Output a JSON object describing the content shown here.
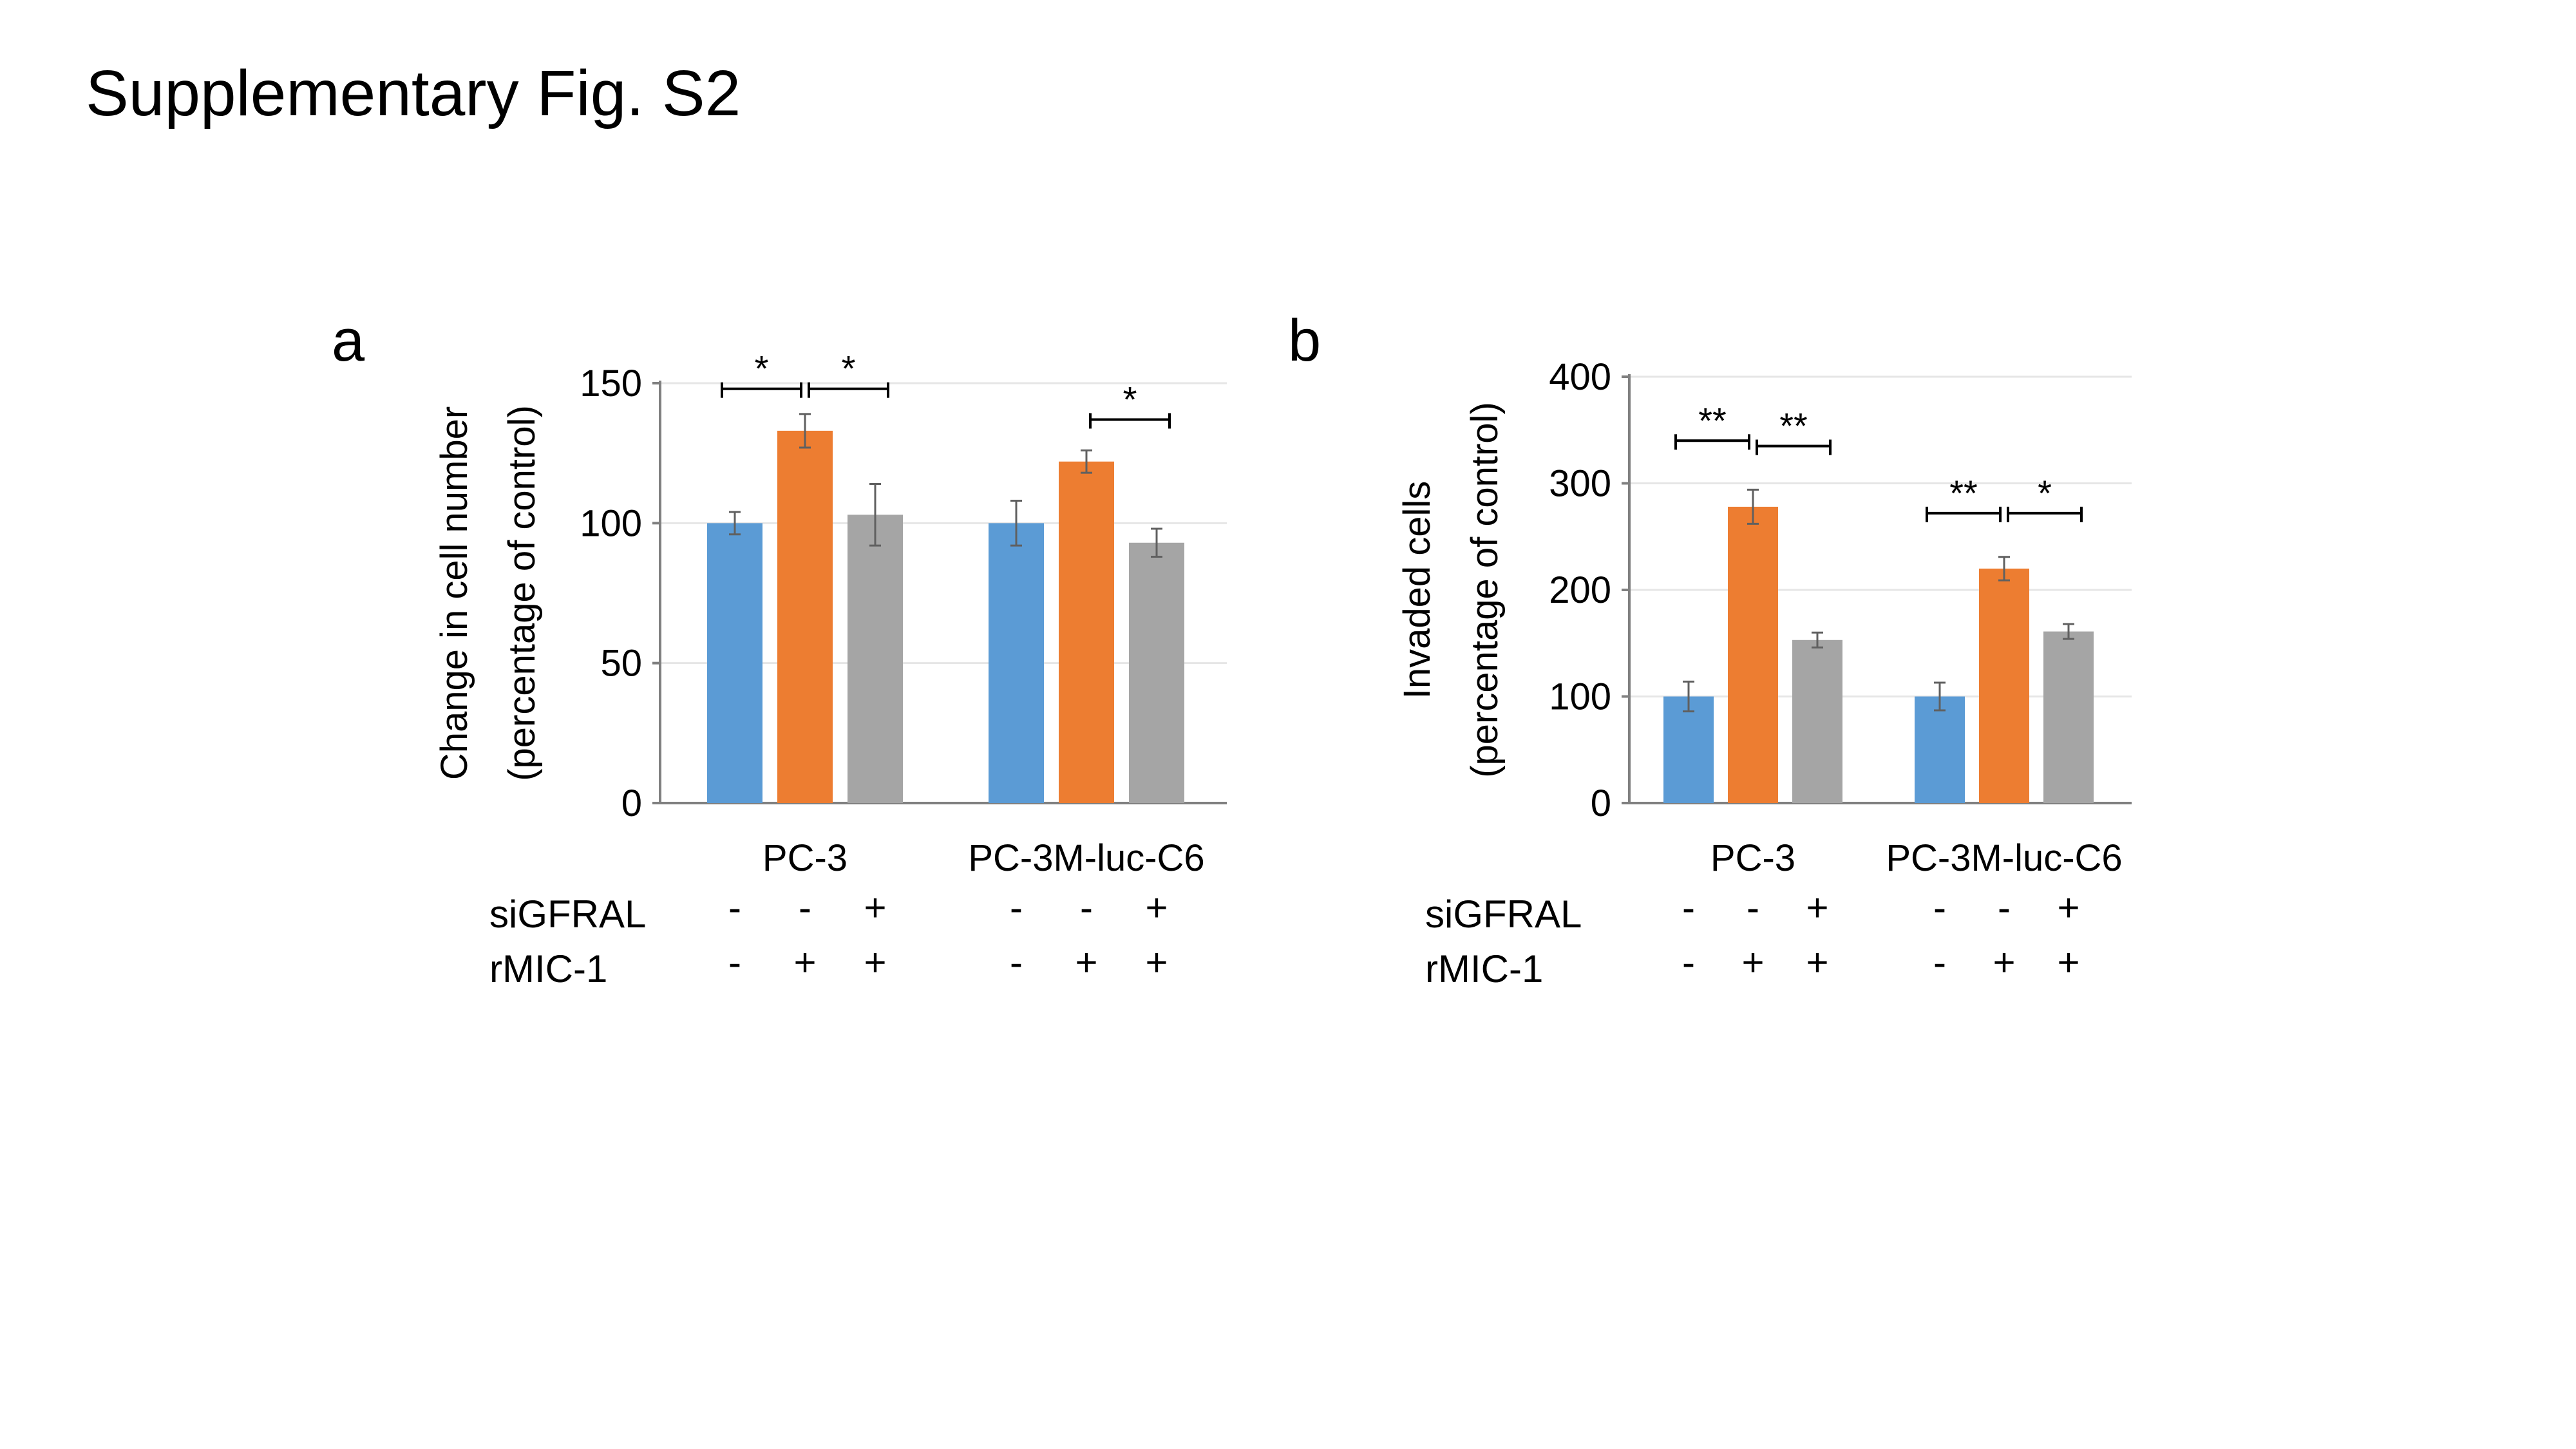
{
  "title": "Supplementary Fig. S2",
  "colors": {
    "blue": "#5b9bd5",
    "orange": "#ed7d31",
    "gray": "#a5a5a5",
    "axis": "#808080",
    "grid": "#e6e6e6"
  },
  "chart_data": [
    {
      "panel": "a",
      "type": "bar",
      "ylabel": [
        "Change in cell number",
        "(percentage of control)"
      ],
      "ylim": [
        0,
        150
      ],
      "yticks": [
        0,
        50,
        100,
        150
      ],
      "grid": true,
      "categories": [
        "PC-3",
        "PC-3M-luc-C6"
      ],
      "conditions": [
        {
          "siGFRAL": "-",
          "rMIC-1": "-",
          "color": "#5b9bd5"
        },
        {
          "siGFRAL": "-",
          "rMIC-1": "+",
          "color": "#ed7d31"
        },
        {
          "siGFRAL": "+",
          "rMIC-1": "+",
          "color": "#a5a5a5"
        }
      ],
      "values": [
        [
          100,
          133,
          103
        ],
        [
          100,
          122,
          93
        ]
      ],
      "errors": [
        [
          4,
          6,
          11
        ],
        [
          8,
          4,
          5
        ]
      ],
      "row_labels": [
        "siGFRAL",
        "rMIC-1"
      ],
      "significance": [
        {
          "group": 0,
          "from": 0,
          "to": 1,
          "label": "*",
          "y": 148
        },
        {
          "group": 0,
          "from": 1,
          "to": 2,
          "label": "*",
          "y": 148
        },
        {
          "group": 1,
          "from": 1,
          "to": 2,
          "label": "*",
          "y": 137
        }
      ]
    },
    {
      "panel": "b",
      "type": "bar",
      "ylabel": [
        "Invaded cells",
        "(percentage of control)"
      ],
      "ylim": [
        0,
        400
      ],
      "yticks": [
        0,
        100,
        200,
        300,
        400
      ],
      "grid": true,
      "categories": [
        "PC-3",
        "PC-3M-luc-C6"
      ],
      "conditions": [
        {
          "siGFRAL": "-",
          "rMIC-1": "-",
          "color": "#5b9bd5"
        },
        {
          "siGFRAL": "-",
          "rMIC-1": "+",
          "color": "#ed7d31"
        },
        {
          "siGFRAL": "+",
          "rMIC-1": "+",
          "color": "#a5a5a5"
        }
      ],
      "values": [
        [
          100,
          278,
          153
        ],
        [
          100,
          220,
          161
        ]
      ],
      "errors": [
        [
          14,
          16,
          7
        ],
        [
          13,
          11,
          7
        ]
      ],
      "row_labels": [
        "siGFRAL",
        "rMIC-1"
      ],
      "significance": [
        {
          "group": 0,
          "from": 0,
          "to": 1,
          "label": "**",
          "y": 340
        },
        {
          "group": 0,
          "from": 1,
          "to": 2,
          "label": "**",
          "y": 335
        },
        {
          "group": 1,
          "from": 0,
          "to": 1,
          "label": "**",
          "y": 272
        },
        {
          "group": 1,
          "from": 1,
          "to": 2,
          "label": "*",
          "y": 272
        }
      ]
    }
  ]
}
